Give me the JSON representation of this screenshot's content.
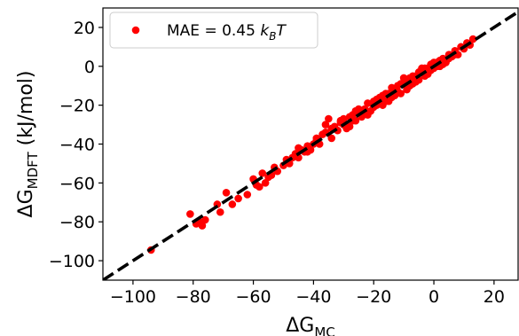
{
  "chart_data": {
    "type": "scatter",
    "xlabel": {
      "base": "ΔG",
      "sub": "MC"
    },
    "ylabel": {
      "base": "ΔG",
      "sub": "MDFT",
      "suffix": " (kJ/mol)"
    },
    "xlim": [
      -110,
      28
    ],
    "ylim": [
      -110,
      30
    ],
    "xticks": [
      -100,
      -80,
      -60,
      -40,
      -20,
      0,
      20
    ],
    "yticks": [
      -100,
      -80,
      -60,
      -40,
      -20,
      0,
      20
    ],
    "xtick_labels": [
      "−100",
      "−80",
      "−60",
      "−40",
      "−20",
      "0",
      "20"
    ],
    "ytick_labels": [
      "−100",
      "−80",
      "−60",
      "−40",
      "−20",
      "0",
      "20"
    ],
    "grid": false,
    "legend": {
      "placement": "upper-left",
      "text": {
        "prefix": "MAE = 0.45 ",
        "k": "k",
        "sub": "B",
        "T": "T"
      }
    },
    "reference_line": {
      "slope": 1,
      "intercept": 0,
      "style": "dashed",
      "color": "#000000"
    },
    "series": [
      {
        "name": "MAE = 0.45 kBT",
        "color": "#ff0000",
        "marker": "circle",
        "points": [
          [
            -94,
            -94.5
          ],
          [
            -81,
            -76
          ],
          [
            -79,
            -81
          ],
          [
            -78,
            -80
          ],
          [
            -77,
            -82
          ],
          [
            -76,
            -79
          ],
          [
            -72,
            -71
          ],
          [
            -71,
            -75
          ],
          [
            -69,
            -65
          ],
          [
            -67,
            -71
          ],
          [
            -65,
            -68
          ],
          [
            -62,
            -66
          ],
          [
            -60,
            -58
          ],
          [
            -59,
            -61
          ],
          [
            -58,
            -62
          ],
          [
            -57,
            -55
          ],
          [
            -56,
            -60
          ],
          [
            -55,
            -57
          ],
          [
            -54,
            -56
          ],
          [
            -53,
            -52
          ],
          [
            -52,
            -54
          ],
          [
            -50,
            -51
          ],
          [
            -49,
            -48
          ],
          [
            -48,
            -50
          ],
          [
            -47,
            -47
          ],
          [
            -46,
            -45
          ],
          [
            -45,
            -47
          ],
          [
            -44,
            -43
          ],
          [
            -43,
            -44
          ],
          [
            -42,
            -41
          ],
          [
            -41,
            -43
          ],
          [
            -40,
            -40
          ],
          [
            -39,
            -38
          ],
          [
            -38,
            -40
          ],
          [
            -37,
            -35
          ],
          [
            -36,
            -34
          ],
          [
            -36,
            -30
          ],
          [
            -35,
            -27
          ],
          [
            -34,
            -37
          ],
          [
            -33,
            -31
          ],
          [
            -32,
            -33
          ],
          [
            -31,
            -28
          ],
          [
            -30,
            -30
          ],
          [
            -29,
            -32
          ],
          [
            -28,
            -26
          ],
          [
            -27,
            -25
          ],
          [
            -26,
            -28
          ],
          [
            -25,
            -24
          ],
          [
            -24,
            -26
          ],
          [
            -23,
            -22
          ],
          [
            -22,
            -19
          ],
          [
            -21,
            -23
          ],
          [
            -20,
            -21
          ],
          [
            -19,
            -17
          ],
          [
            -18,
            -19
          ],
          [
            -17,
            -15
          ],
          [
            -16,
            -18
          ],
          [
            -15,
            -14
          ],
          [
            -14,
            -16
          ],
          [
            -13,
            -12
          ],
          [
            -12,
            -10
          ],
          [
            -11,
            -14
          ],
          [
            -10,
            -9
          ],
          [
            -9,
            -12
          ],
          [
            -8,
            -6
          ],
          [
            -7,
            -9
          ],
          [
            -6,
            -5
          ],
          [
            -5,
            -7
          ],
          [
            -4,
            -3
          ],
          [
            -3,
            -5
          ],
          [
            -2,
            -1
          ],
          [
            -1,
            1
          ],
          [
            0,
            -1
          ],
          [
            1,
            2
          ],
          [
            2,
            0
          ],
          [
            3,
            4
          ],
          [
            4,
            2
          ],
          [
            5,
            6
          ],
          [
            6,
            5
          ],
          [
            7,
            8
          ],
          [
            8,
            6
          ],
          [
            9,
            10
          ],
          [
            10,
            9
          ],
          [
            11,
            12
          ],
          [
            12,
            11
          ],
          [
            13,
            14
          ],
          [
            -25,
            -22
          ],
          [
            -22,
            -25
          ],
          [
            -18,
            -16
          ],
          [
            -15,
            -18
          ],
          [
            -12,
            -13
          ],
          [
            -10,
            -6
          ],
          [
            -8,
            -10
          ],
          [
            -6,
            -8
          ],
          [
            -4,
            -1
          ],
          [
            -2,
            -4
          ],
          [
            0,
            2
          ],
          [
            2,
            3
          ],
          [
            -30,
            -27
          ],
          [
            -28,
            -31
          ],
          [
            -26,
            -23
          ],
          [
            -20,
            -18
          ],
          [
            -17,
            -20
          ],
          [
            -14,
            -11
          ],
          [
            -11,
            -9
          ],
          [
            -9,
            -7
          ],
          [
            -7,
            -5
          ],
          [
            -5,
            -3
          ],
          [
            -3,
            -1
          ],
          [
            -1,
            -2
          ],
          [
            1,
            0
          ],
          [
            3,
            1
          ],
          [
            5,
            4
          ],
          [
            7,
            6
          ],
          [
            -45,
            -42
          ],
          [
            -42,
            -44
          ],
          [
            -39,
            -37
          ],
          [
            -34,
            -32
          ],
          [
            -31,
            -29
          ],
          [
            -27,
            -28
          ],
          [
            -23,
            -24
          ],
          [
            -19,
            -20
          ],
          [
            -16,
            -14
          ],
          [
            -13,
            -15
          ]
        ]
      }
    ]
  }
}
